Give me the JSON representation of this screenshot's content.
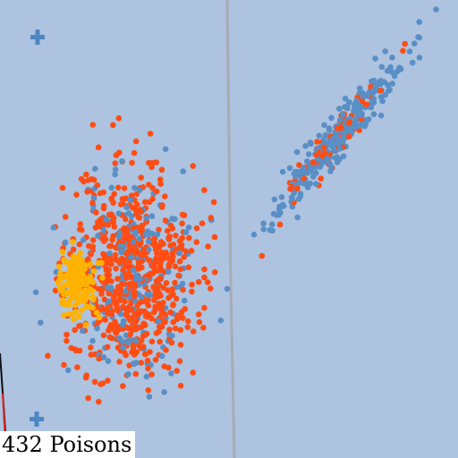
{
  "scene": {
    "caption": "432 Poisons",
    "colors": {
      "background": "#adc3e0",
      "divider": "#a7acb4",
      "blue_team": "#5a8fc6",
      "red_team": "#ff4d14",
      "yellow_team": "#ffb300",
      "marker": "#4e86c4"
    },
    "markers": [
      "plus-marker",
      "plus-marker"
    ]
  }
}
